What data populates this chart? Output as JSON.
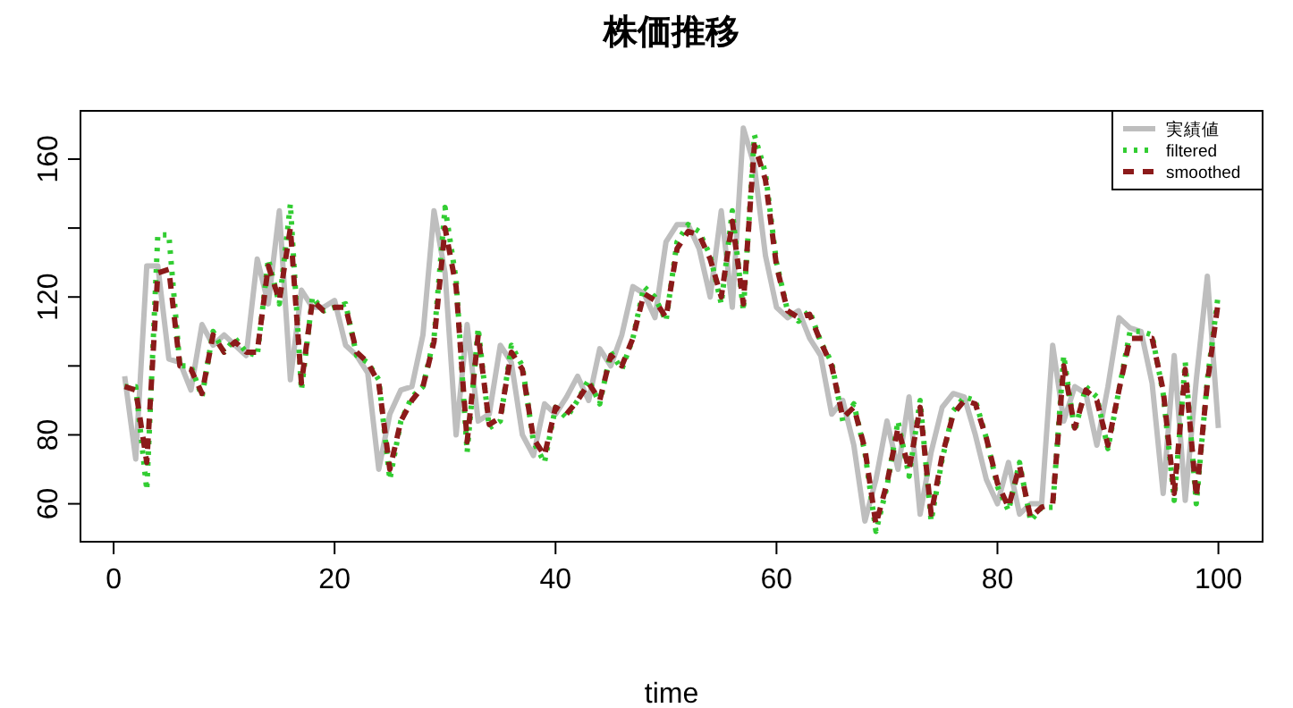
{
  "chart_data": {
    "type": "line",
    "title": "株価推移",
    "xlabel": "time",
    "x": [
      1,
      2,
      3,
      4,
      5,
      6,
      7,
      8,
      9,
      10,
      11,
      12,
      13,
      14,
      15,
      16,
      17,
      18,
      19,
      20,
      21,
      22,
      23,
      24,
      25,
      26,
      27,
      28,
      29,
      30,
      31,
      32,
      33,
      34,
      35,
      36,
      37,
      38,
      39,
      40,
      41,
      42,
      43,
      44,
      45,
      46,
      47,
      48,
      49,
      50,
      51,
      52,
      53,
      54,
      55,
      56,
      57,
      58,
      59,
      60,
      61,
      62,
      63,
      64,
      65,
      66,
      67,
      68,
      69,
      70,
      71,
      72,
      73,
      74,
      75,
      76,
      77,
      78,
      79,
      80,
      81,
      82,
      83,
      84,
      85,
      86,
      87,
      88,
      89,
      90,
      91,
      92,
      93,
      94,
      95,
      96,
      97,
      98,
      99,
      100
    ],
    "series": [
      {
        "name": "実績値",
        "color": "#bebebe",
        "line_style": "solid",
        "values": [
          97,
          73,
          129,
          129,
          102,
          101,
          93,
          112,
          106,
          109,
          106,
          103,
          131,
          118,
          145,
          96,
          122,
          117,
          117,
          119,
          106,
          103,
          98,
          70,
          86,
          93,
          94,
          109,
          145,
          127,
          80,
          112,
          84,
          86,
          106,
          101,
          80,
          74,
          89,
          86,
          91,
          97,
          90,
          105,
          100,
          109,
          123,
          121,
          114,
          136,
          141,
          141,
          134,
          120,
          145,
          117,
          169,
          158,
          132,
          117,
          114,
          116,
          108,
          103,
          86,
          90,
          77,
          55,
          67,
          84,
          70,
          91,
          57,
          75,
          88,
          92,
          91,
          80,
          67,
          60,
          72,
          57,
          60,
          60,
          106,
          84,
          94,
          92,
          77,
          94,
          114,
          111,
          110,
          95,
          63,
          103,
          61,
          96,
          126,
          82
        ]
      },
      {
        "name": "filtered",
        "color": "#32cd32",
        "line_style": "dotted",
        "values": [
          94,
          94,
          64,
          138,
          138,
          100,
          100,
          91,
          110,
          104,
          108,
          104,
          103,
          131,
          118,
          147,
          93,
          120,
          116,
          117,
          118,
          103,
          101,
          96,
          67,
          84,
          91,
          94,
          108,
          146,
          125,
          75,
          111,
          82,
          84,
          106,
          100,
          78,
          72,
          88,
          85,
          90,
          96,
          89,
          104,
          99,
          108,
          123,
          120,
          113,
          136,
          141,
          139,
          132,
          118,
          145,
          116,
          167,
          156,
          130,
          116,
          113,
          116,
          107,
          101,
          84,
          89,
          75,
          52,
          65,
          84,
          68,
          90,
          55,
          73,
          87,
          91,
          90,
          79,
          65,
          58,
          72,
          55,
          59,
          59,
          103,
          81,
          94,
          91,
          76,
          93,
          110,
          110,
          109,
          92,
          61,
          101,
          60,
          96,
          121
        ]
      },
      {
        "name": "smoothed",
        "color": "#8b1a1a",
        "line_style": "dashed",
        "values": [
          94,
          93,
          72,
          127,
          128,
          100,
          99,
          92,
          109,
          104,
          107,
          104,
          104,
          129,
          119,
          140,
          95,
          119,
          116,
          117,
          117,
          104,
          101,
          95,
          70,
          84,
          90,
          94,
          107,
          140,
          123,
          78,
          109,
          83,
          85,
          104,
          99,
          79,
          74,
          88,
          86,
          90,
          95,
          90,
          103,
          100,
          108,
          121,
          119,
          114,
          134,
          139,
          138,
          131,
          120,
          142,
          118,
          164,
          154,
          129,
          116,
          114,
          115,
          107,
          100,
          85,
          88,
          76,
          54,
          66,
          82,
          70,
          88,
          57,
          74,
          86,
          90,
          89,
          79,
          66,
          59,
          71,
          56,
          59,
          60,
          100,
          82,
          93,
          90,
          77,
          93,
          108,
          108,
          108,
          93,
          63,
          99,
          62,
          95,
          119
        ]
      }
    ],
    "xlim": [
      -3,
      104
    ],
    "ylim": [
      49,
      174
    ],
    "xticks": [
      0,
      20,
      40,
      60,
      80,
      100
    ],
    "yticks": [
      60,
      80,
      {
        "value": 100,
        "label": null
      },
      120,
      {
        "value": 140,
        "label": null
      },
      160
    ],
    "legend": "top right",
    "grid": false,
    "marker": "none"
  }
}
